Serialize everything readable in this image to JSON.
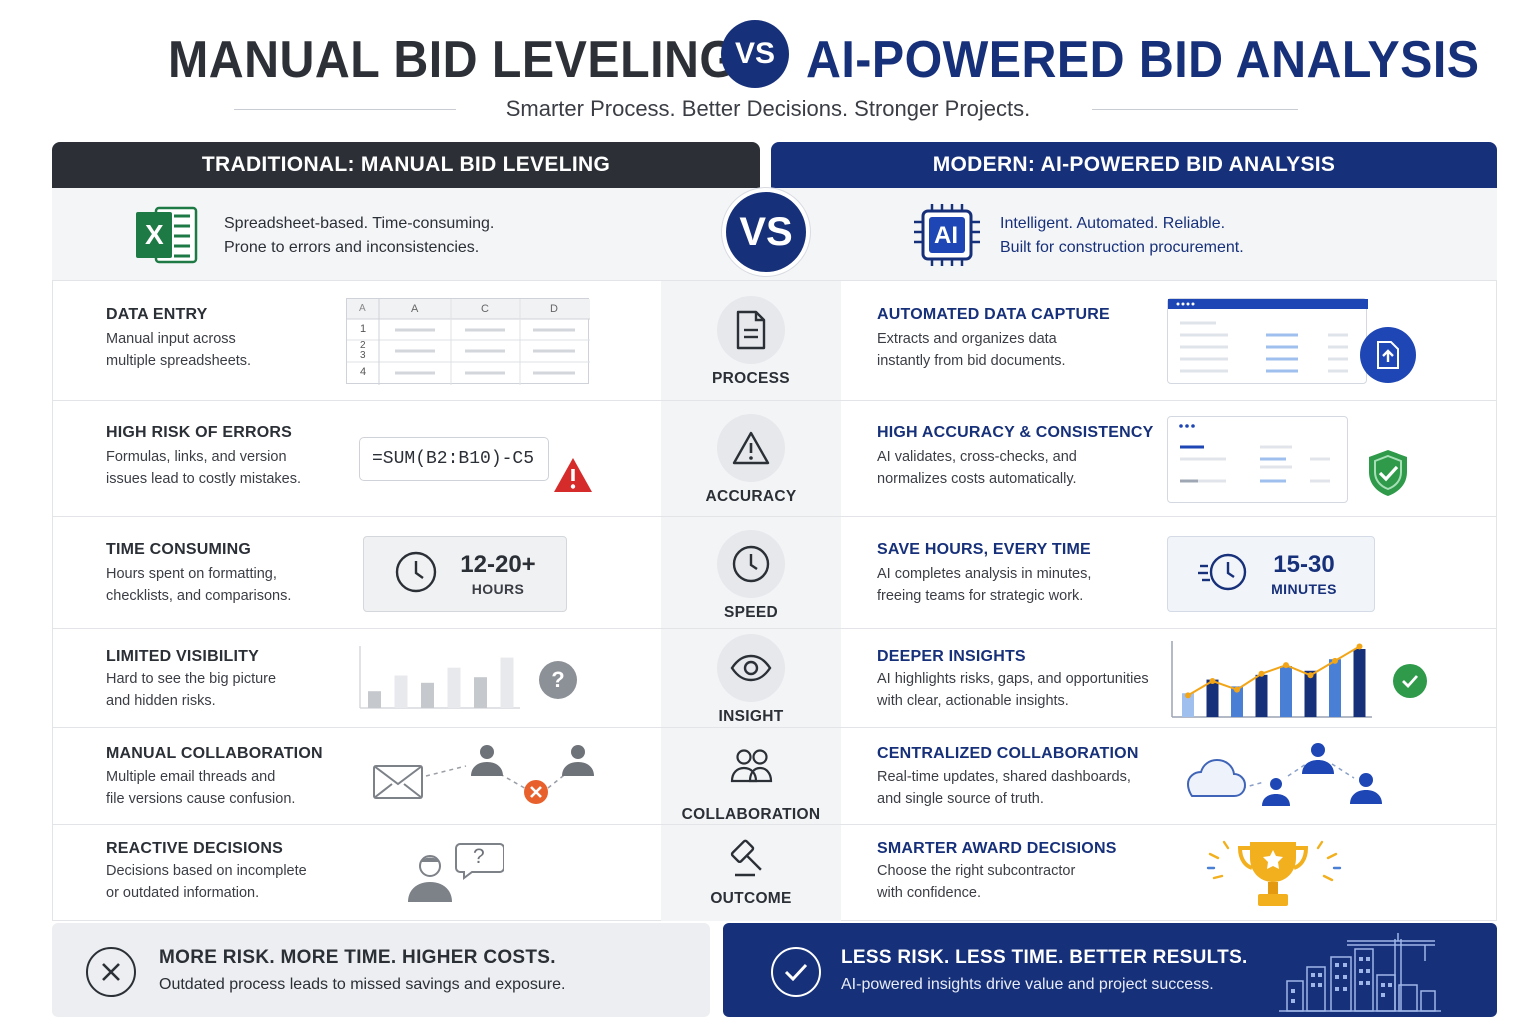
{
  "title": {
    "left": "MANUAL BID LEVELING",
    "vs": "VS",
    "right": "AI-POWERED BID ANALYSIS",
    "subtitle": "Smarter Process. Better Decisions. Stronger Projects."
  },
  "headers": {
    "left": "TRADITIONAL: MANUAL BID LEVELING",
    "right": "MODERN: AI-POWERED BID ANALYSIS",
    "vs": "VS"
  },
  "intro": {
    "left_line1": "Spreadsheet-based. Time-consuming.",
    "left_line2": "Prone to errors and inconsistencies.",
    "right_line1": "Intelligent. Automated. Reliable.",
    "right_line2": "Built for construction procurement.",
    "excel_letter": "X",
    "ai_letter": "AI"
  },
  "rows": [
    {
      "center": "PROCESS",
      "left_title": "DATA ENTRY",
      "left_desc1": "Manual input across",
      "left_desc2": "multiple spreadsheets.",
      "right_title": "AUTOMATED DATA CAPTURE",
      "right_desc1": "Extracts and organizes data",
      "right_desc2": "instantly from bid documents."
    },
    {
      "center": "ACCURACY",
      "left_title": "HIGH RISK OF ERRORS",
      "left_desc1": "Formulas, links, and version",
      "left_desc2": "issues lead to costly mistakes.",
      "right_title": "HIGH ACCURACY & CONSISTENCY",
      "right_desc1": "AI validates, cross-checks, and",
      "right_desc2": "normalizes costs automatically."
    },
    {
      "center": "SPEED",
      "left_title": "TIME CONSUMING",
      "left_desc1": "Hours spent on formatting,",
      "left_desc2": "checklists, and comparisons.",
      "right_title": "SAVE HOURS, EVERY TIME",
      "right_desc1": "AI completes analysis in minutes,",
      "right_desc2": "freeing teams for strategic work."
    },
    {
      "center": "INSIGHT",
      "left_title": "LIMITED VISIBILITY",
      "left_desc1": "Hard to see the big picture",
      "left_desc2": "and hidden risks.",
      "right_title": "DEEPER INSIGHTS",
      "right_desc1": "AI highlights risks, gaps, and opportunities",
      "right_desc2": "with clear, actionable insights."
    },
    {
      "center": "COLLABORATION",
      "left_title": "MANUAL COLLABORATION",
      "left_desc1": "Multiple email threads and",
      "left_desc2": "file versions cause confusion.",
      "right_title": "CENTRALIZED COLLABORATION",
      "right_desc1": "Real-time updates, shared dashboards,",
      "right_desc2": "and single source of truth."
    },
    {
      "center": "OUTCOME",
      "left_title": "REACTIVE DECISIONS",
      "left_desc1": "Decisions based on incomplete",
      "left_desc2": "or outdated information.",
      "right_title": "SMARTER AWARD DECISIONS",
      "right_desc1": "Choose the right subcontractor",
      "right_desc2": "with confidence."
    }
  ],
  "sheet": {
    "col_headers": [
      "A",
      "A",
      "C",
      "D"
    ],
    "row_numbers": [
      "1",
      "2\n3",
      "4"
    ]
  },
  "formula": "=SUM(B2:B10)-C5",
  "time": {
    "left_value": "12-20+",
    "left_unit": "HOURS",
    "right_value": "15-30",
    "right_unit": "MINUTES"
  },
  "question_mark": "?",
  "left_bars": [
    0.3,
    0.58,
    0.45,
    0.72,
    0.55,
    0.9
  ],
  "right_bars": [
    0.35,
    0.55,
    0.45,
    0.62,
    0.75,
    0.68,
    0.85,
    1.0
  ],
  "right_trend": [
    0.3,
    0.5,
    0.38,
    0.6,
    0.72,
    0.58,
    0.78,
    0.98
  ],
  "footer": {
    "left_title": "MORE RISK. MORE TIME. HIGHER COSTS.",
    "left_desc": "Outdated process leads to missed savings and exposure.",
    "right_title": "LESS RISK. LESS TIME. BETTER RESULTS.",
    "right_desc": "AI-powered insights drive value and project success."
  },
  "colors": {
    "navy": "#17307a",
    "dark": "#2c3036",
    "red": "#d62b2b",
    "green": "#2e9a4a",
    "orange": "#e8612c",
    "gold": "#f2b01e"
  }
}
